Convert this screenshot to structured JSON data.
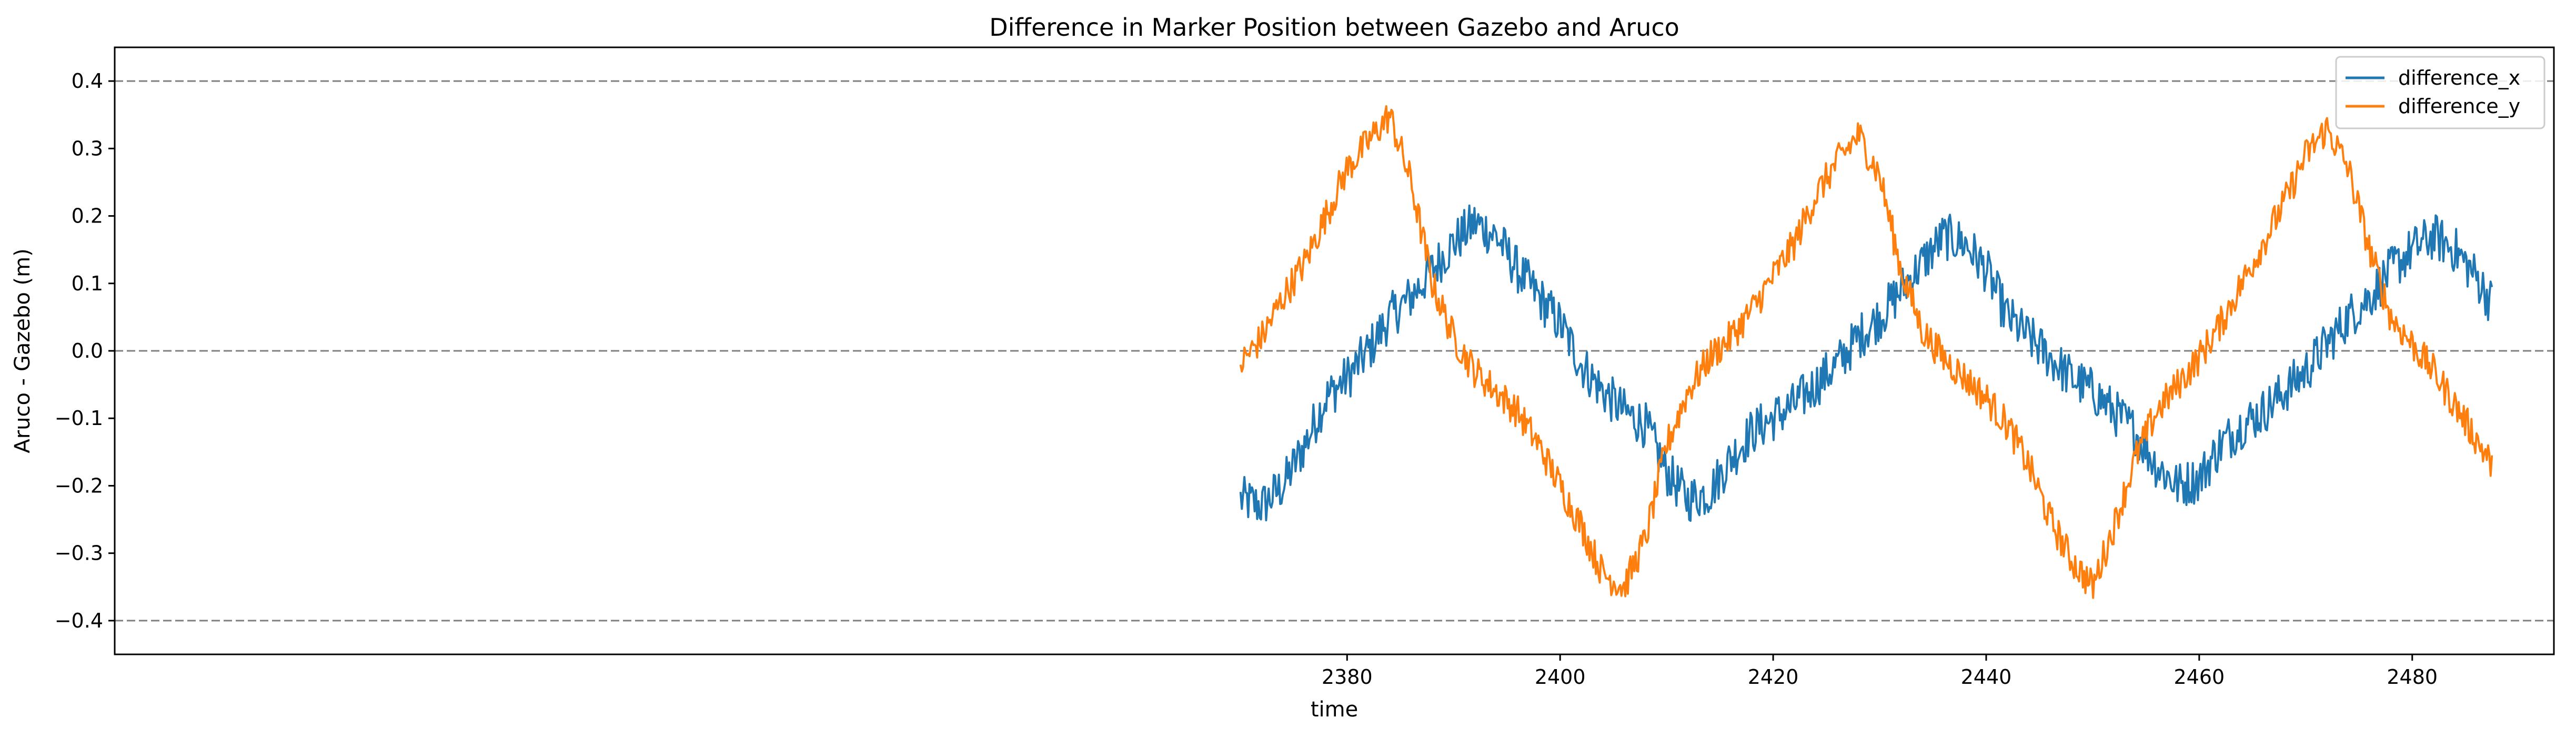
{
  "chart_data": {
    "type": "line",
    "title": "Difference in Marker Position between Gazebo and Aruco",
    "xlabel": "time",
    "ylabel": "Aruco - Gazebo (m)",
    "xlim": [
      2264.3,
      2493.3
    ],
    "ylim": [
      -0.45,
      0.45
    ],
    "xticks": [
      2380,
      2400,
      2420,
      2440,
      2460,
      2480
    ],
    "xtick_labels": [
      "2380",
      "2400",
      "2420",
      "2440",
      "2460",
      "2480"
    ],
    "yticks": [
      -0.4,
      -0.3,
      -0.2,
      -0.1,
      0.0,
      0.1,
      0.2,
      0.3,
      0.4
    ],
    "ytick_labels": [
      "−0.4",
      "−0.3",
      "−0.2",
      "−0.1",
      "0.0",
      "0.1",
      "0.2",
      "0.3",
      "0.4"
    ],
    "reference_lines": [
      0.4,
      0.0,
      -0.4
    ],
    "grid": false,
    "legend_position": "top-right",
    "series": [
      {
        "name": "difference_x",
        "color": "#1f77b4",
        "noise": 0.035,
        "x": [
          2370,
          2372,
          2374,
          2376,
          2378,
          2380,
          2382,
          2384,
          2386,
          2388,
          2390,
          2392,
          2394,
          2396,
          2398,
          2400,
          2402,
          2404,
          2406,
          2408,
          2410,
          2412,
          2414,
          2416,
          2418,
          2420,
          2422,
          2424,
          2426,
          2428,
          2430,
          2432,
          2434,
          2436,
          2438,
          2440,
          2442,
          2444,
          2446,
          2448,
          2450,
          2452,
          2454,
          2456,
          2458,
          2460,
          2462,
          2464,
          2466,
          2468,
          2470,
          2472,
          2474,
          2476,
          2478,
          2480,
          2482,
          2484,
          2486,
          2487.5
        ],
        "y": [
          -0.22,
          -0.23,
          -0.2,
          -0.14,
          -0.07,
          -0.04,
          0.0,
          0.05,
          0.08,
          0.12,
          0.16,
          0.19,
          0.17,
          0.12,
          0.08,
          0.04,
          -0.02,
          -0.06,
          -0.09,
          -0.11,
          -0.18,
          -0.22,
          -0.21,
          -0.16,
          -0.12,
          -0.1,
          -0.08,
          -0.05,
          -0.02,
          0.02,
          0.05,
          0.09,
          0.13,
          0.17,
          0.16,
          0.12,
          0.05,
          0.02,
          -0.01,
          -0.04,
          -0.06,
          -0.09,
          -0.12,
          -0.17,
          -0.2,
          -0.19,
          -0.14,
          -0.11,
          -0.09,
          -0.06,
          -0.03,
          0.01,
          0.05,
          0.08,
          0.12,
          0.15,
          0.17,
          0.15,
          0.11,
          0.07
        ]
      },
      {
        "name": "difference_y",
        "color": "#ff7f0e",
        "noise": 0.025,
        "x": [
          2370,
          2372,
          2374,
          2376,
          2378,
          2380,
          2382,
          2384,
          2386,
          2388,
          2390,
          2392,
          2394,
          2396,
          2398,
          2400,
          2402,
          2404,
          2406,
          2408,
          2410,
          2412,
          2414,
          2416,
          2418,
          2420,
          2422,
          2424,
          2426,
          2428,
          2430,
          2432,
          2434,
          2436,
          2438,
          2440,
          2442,
          2444,
          2446,
          2448,
          2450,
          2452,
          2454,
          2456,
          2458,
          2460,
          2462,
          2464,
          2466,
          2468,
          2470,
          2472,
          2474,
          2476,
          2478,
          2480,
          2482,
          2484,
          2486,
          2487.5
        ],
        "y": [
          -0.02,
          0.02,
          0.08,
          0.13,
          0.2,
          0.27,
          0.31,
          0.35,
          0.25,
          0.1,
          0.02,
          -0.03,
          -0.06,
          -0.09,
          -0.14,
          -0.2,
          -0.26,
          -0.33,
          -0.35,
          -0.28,
          -0.14,
          -0.06,
          -0.01,
          0.02,
          0.06,
          0.11,
          0.16,
          0.23,
          0.28,
          0.32,
          0.26,
          0.12,
          0.03,
          -0.01,
          -0.04,
          -0.07,
          -0.11,
          -0.17,
          -0.25,
          -0.31,
          -0.35,
          -0.26,
          -0.16,
          -0.09,
          -0.05,
          -0.01,
          0.04,
          0.1,
          0.16,
          0.22,
          0.29,
          0.33,
          0.27,
          0.15,
          0.05,
          0.01,
          -0.03,
          -0.08,
          -0.13,
          -0.17
        ]
      }
    ]
  }
}
